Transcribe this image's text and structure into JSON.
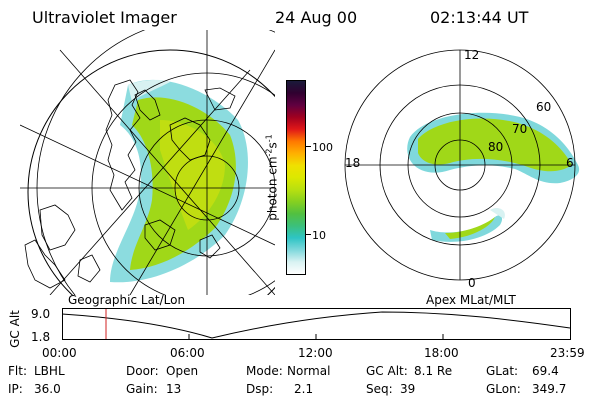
{
  "header": {
    "instrument": "Ultraviolet Imager",
    "date": "24 Aug 00",
    "time": "02:13:44 UT"
  },
  "left_panel": {
    "label": "Geographic Lat/Lon"
  },
  "right_panel": {
    "label": "Apex MLat/MLT",
    "mlt_labels": {
      "top": "12",
      "left": "18",
      "right": "6",
      "bottom": "0"
    },
    "lat_labels": [
      "60",
      "70",
      "80"
    ]
  },
  "colorbar": {
    "unit_label": "photon cm",
    "unit_exp1": "-2",
    "unit_mid": "s",
    "unit_exp2": "-1",
    "ticks": [
      "100",
      "10"
    ],
    "colors": [
      "#ffffff",
      "#d8f2f2",
      "#7fd8dc",
      "#2ec4c4",
      "#3cc07a",
      "#52c040",
      "#86d020",
      "#b8e010",
      "#dce800",
      "#f0e000",
      "#ffb000",
      "#ff7800",
      "#e01818",
      "#a00020",
      "#600040",
      "#300030",
      "#1a1a3a"
    ]
  },
  "altitude_plot": {
    "axis_label": "GC Alt",
    "y_ticks": [
      "9.0",
      "1.8"
    ],
    "x_ticks": [
      "00:00",
      "06:00",
      "12:00",
      "18:00",
      "23:59"
    ]
  },
  "info": {
    "flt_label": "Flt:",
    "flt": "LBHL",
    "door_label": "Door:",
    "door": "Open",
    "mode_label": "Mode:",
    "mode": "Normal",
    "gcalt_label": "GC Alt:",
    "gcalt": "8.1 Re",
    "glat_label": "GLat:",
    "glat": "69.4",
    "ip_label": "IP:",
    "ip": "36.0",
    "gain_label": "Gain:",
    "gain": "13",
    "dsp_label": "Dsp:",
    "dsp": "2.1",
    "seq_label": "Seq:",
    "seq": "39",
    "glon_label": "GLon:",
    "glon": "349.7"
  },
  "colors": {
    "marker": "#d02020",
    "aurora_main": "#a0d818",
    "aurora_edge": "#38c0c0"
  }
}
